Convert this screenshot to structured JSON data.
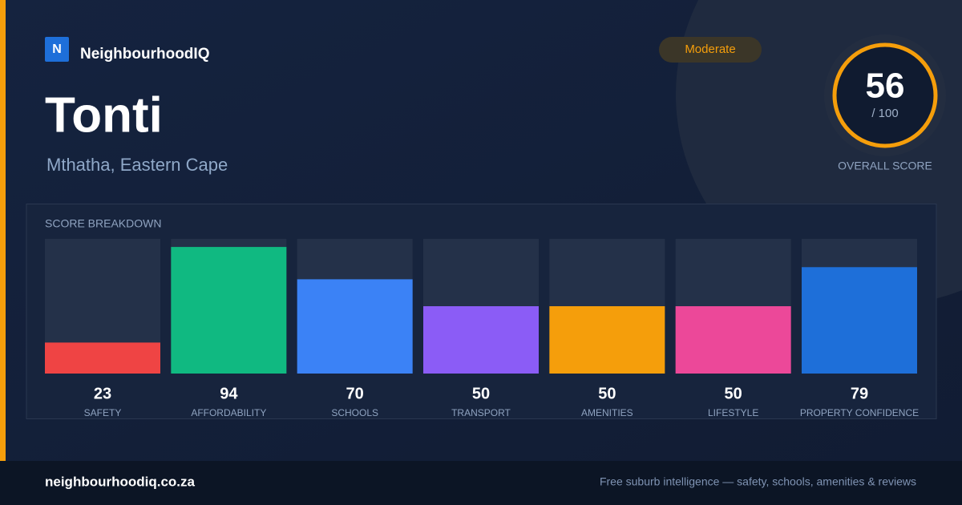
{
  "brand": {
    "logo_letter": "N",
    "name": "NeighbourhoodIQ"
  },
  "suburb": {
    "name": "Tonti",
    "location": "Mthatha, Eastern Cape"
  },
  "rating": "Moderate",
  "overall": {
    "score": 56,
    "scale_label": "/ 100",
    "caption": "OVERALL SCORE"
  },
  "chart_data": {
    "type": "bar",
    "title": "SCORE BREAKDOWN",
    "categories": [
      "SAFETY",
      "AFFORDABILITY",
      "SCHOOLS",
      "TRANSPORT",
      "AMENITIES",
      "LIFESTYLE",
      "PROPERTY CONFIDENCE"
    ],
    "values": [
      23,
      94,
      70,
      50,
      50,
      50,
      79
    ],
    "colors": [
      "#ef4444",
      "#10b981",
      "#3b82f6",
      "#8b5cf6",
      "#f59e0b",
      "#ec4899",
      "#1e6fd9"
    ],
    "ylim": [
      0,
      100
    ]
  },
  "footer": {
    "site": "neighbourhoodiq.co.za",
    "tagline": "Free suburb intelligence — safety, schools, amenities & reviews"
  }
}
